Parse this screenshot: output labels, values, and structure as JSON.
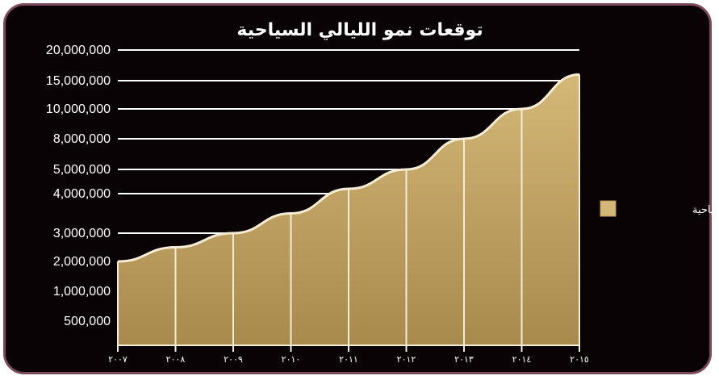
{
  "chart_data": {
    "type": "area",
    "title": "توقعات نمو الليالي السياحية",
    "xlabel": "",
    "ylabel": "",
    "x": [
      "٢٠٠٧",
      "٢٠٠٨",
      "٢٠٠٩",
      "٢٠١٠",
      "٢٠١١",
      "٢٠١٢",
      "٢٠١٣",
      "٢٠١٤",
      "٢٠١٥"
    ],
    "y_ticks": [
      "20,000,000",
      "15,000,000",
      "10,000,000",
      "8,000,000",
      "5,000,000",
      "4,000,000",
      "3,000,000",
      "2,000,000",
      "1,000,000",
      "500,000"
    ],
    "series": [
      {
        "name": "الليالي السياحية",
        "values": [
          2000000,
          2500000,
          3000000,
          3500000,
          4200000,
          5000000,
          8000000,
          10000000,
          16000000
        ]
      }
    ],
    "grid": true,
    "legend_position": "right",
    "colors": {
      "background": "#0a0305",
      "fill": "#b89a5a",
      "fill_light": "#d4b878",
      "stroke": "#f5ecd6",
      "grid": "#ffffff",
      "frame": "#7a4a5a"
    }
  }
}
